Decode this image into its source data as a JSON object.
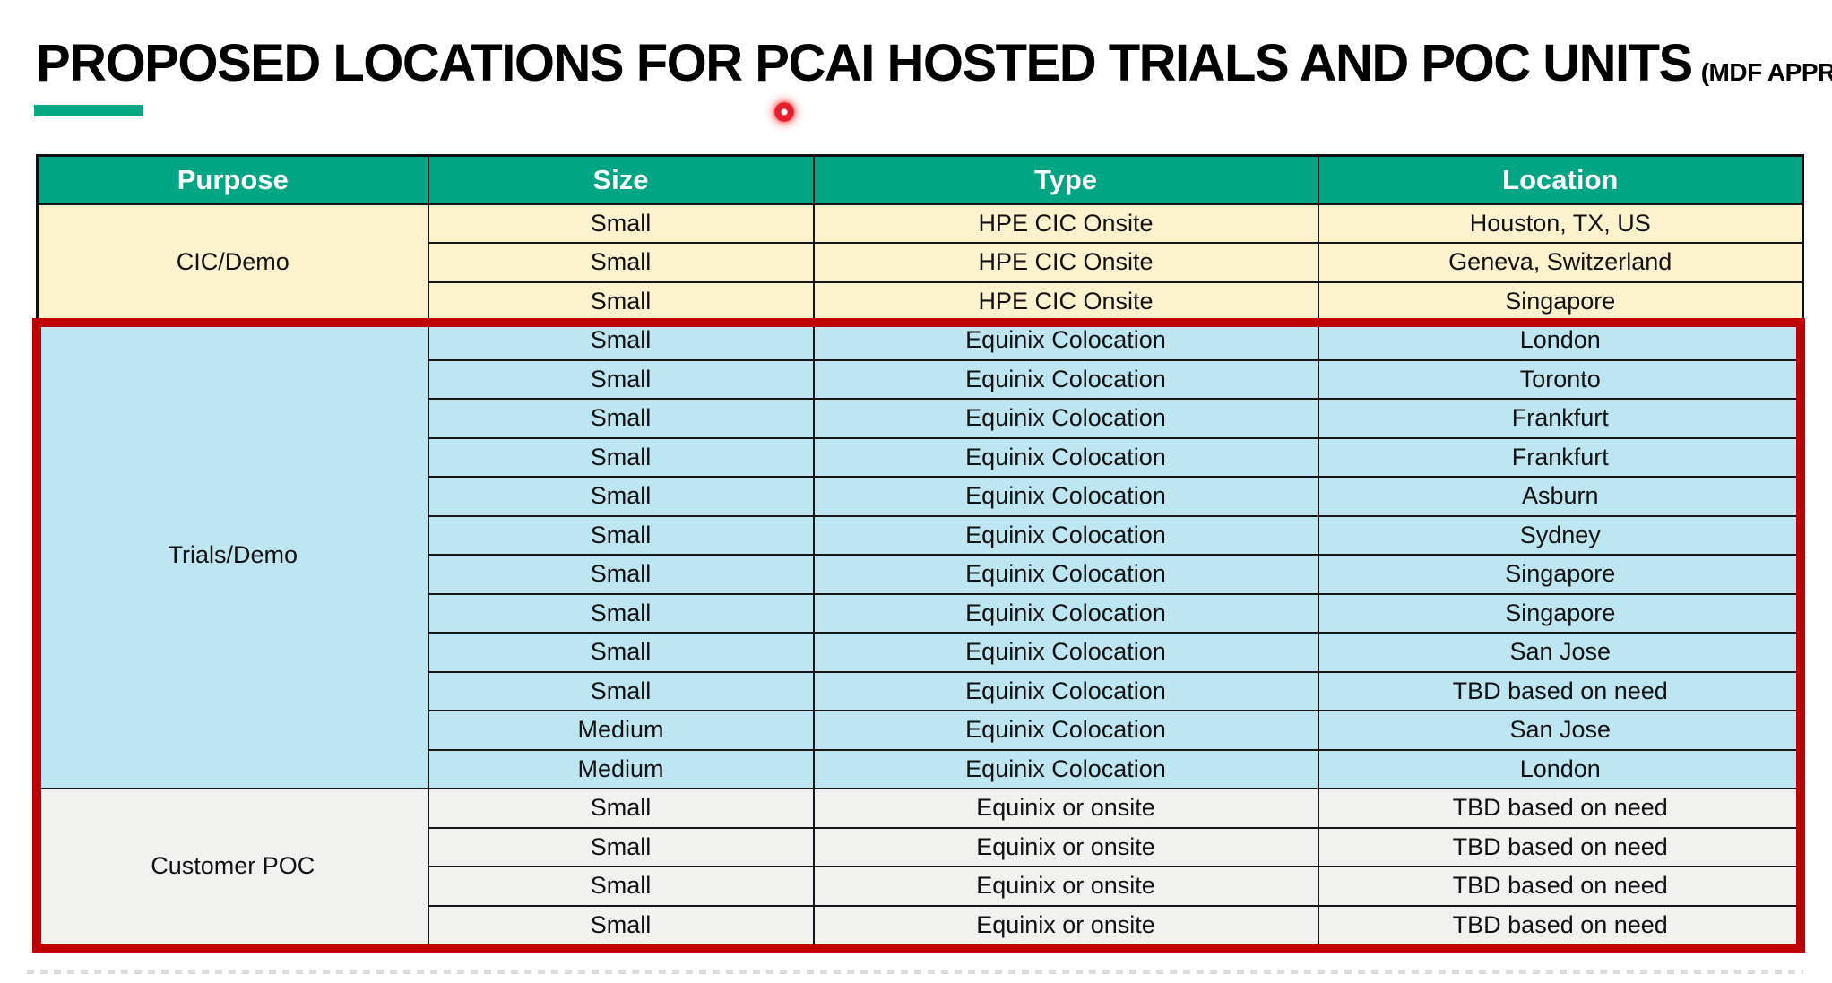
{
  "page": {
    "title": "PROPOSED LOCATIONS FOR PCAI HOSTED TRIALS AND POC UNITS",
    "title_suffix": "(MDF APPROVED)"
  },
  "colors": {
    "accent_bar": "#01A982",
    "header_bg": "#00A583",
    "highlight_border": "#C00000",
    "laser_dot": "#E51D2B",
    "cic_bg": "#FCF2CD",
    "trials_bg": "#BDE6F2",
    "poc_bg": "#F1F1EF"
  },
  "table": {
    "headers": [
      "Purpose",
      "Size",
      "Type",
      "Location"
    ],
    "sections": [
      {
        "purpose": "CIC/Demo",
        "bg": "#FCF2CD",
        "rows": [
          {
            "size": "Small",
            "type": "HPE CIC Onsite",
            "location": "Houston, TX, US"
          },
          {
            "size": "Small",
            "type": "HPE CIC Onsite",
            "location": "Geneva, Switzerland"
          },
          {
            "size": "Small",
            "type": "HPE CIC Onsite",
            "location": "Singapore"
          }
        ]
      },
      {
        "purpose": "Trials/Demo",
        "bg": "#BDE6F2",
        "rows": [
          {
            "size": "Small",
            "type": "Equinix Colocation",
            "location": "London"
          },
          {
            "size": "Small",
            "type": "Equinix Colocation",
            "location": "Toronto"
          },
          {
            "size": "Small",
            "type": "Equinix Colocation",
            "location": "Frankfurt"
          },
          {
            "size": "Small",
            "type": "Equinix Colocation",
            "location": "Frankfurt"
          },
          {
            "size": "Small",
            "type": "Equinix Colocation",
            "location": "Asburn"
          },
          {
            "size": "Small",
            "type": "Equinix Colocation",
            "location": "Sydney"
          },
          {
            "size": "Small",
            "type": "Equinix Colocation",
            "location": "Singapore"
          },
          {
            "size": "Small",
            "type": "Equinix Colocation",
            "location": "Singapore"
          },
          {
            "size": "Small",
            "type": "Equinix Colocation",
            "location": "San Jose"
          },
          {
            "size": "Small",
            "type": "Equinix Colocation",
            "location": "TBD based on need"
          },
          {
            "size": "Medium",
            "type": "Equinix Colocation",
            "location": "San Jose"
          },
          {
            "size": "Medium",
            "type": "Equinix Colocation",
            "location": "London"
          }
        ]
      },
      {
        "purpose": "Customer POC",
        "bg": "#F1F1EF",
        "rows": [
          {
            "size": "Small",
            "type": "Equinix or onsite",
            "location": "TBD based on need"
          },
          {
            "size": "Small",
            "type": "Equinix or onsite",
            "location": "TBD based on need"
          },
          {
            "size": "Small",
            "type": "Equinix or onsite",
            "location": "TBD based on need"
          },
          {
            "size": "Small",
            "type": "Equinix or onsite",
            "location": "TBD based on need"
          }
        ]
      }
    ]
  }
}
